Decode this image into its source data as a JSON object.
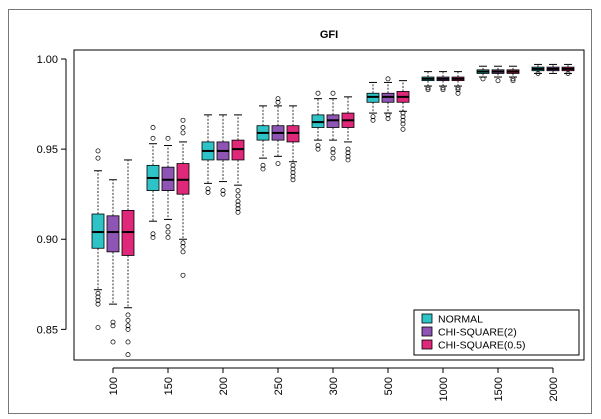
{
  "chart_data": {
    "type": "box",
    "title": "GFI",
    "xlabel": "",
    "ylabel": "",
    "ylim": [
      0.833,
      1.005
    ],
    "y_ticks": [
      "0.85",
      "0.90",
      "0.95",
      "1.00"
    ],
    "categories": [
      "100",
      "150",
      "200",
      "250",
      "300",
      "500",
      "1000",
      "1500",
      "2000"
    ],
    "legend_position": "bottom-right",
    "series": [
      {
        "name": "NORMAL",
        "color": "#2ec4c7",
        "boxes": [
          {
            "whisker_low": 0.872,
            "q1": 0.895,
            "median": 0.904,
            "q3": 0.914,
            "whisker_high": 0.938,
            "outliers": [
              0.851,
              0.864,
              0.866,
              0.868,
              0.87,
              0.945,
              0.949
            ]
          },
          {
            "whisker_low": 0.91,
            "q1": 0.927,
            "median": 0.934,
            "q3": 0.941,
            "whisker_high": 0.953,
            "outliers": [
              0.901,
              0.903,
              0.956,
              0.962
            ]
          },
          {
            "whisker_low": 0.931,
            "q1": 0.944,
            "median": 0.949,
            "q3": 0.954,
            "whisker_high": 0.969,
            "outliers": [
              0.926,
              0.928
            ]
          },
          {
            "whisker_low": 0.945,
            "q1": 0.955,
            "median": 0.959,
            "q3": 0.963,
            "whisker_high": 0.974,
            "outliers": [
              0.939,
              0.941
            ]
          },
          {
            "whisker_low": 0.955,
            "q1": 0.962,
            "median": 0.965,
            "q3": 0.969,
            "whisker_high": 0.978,
            "outliers": [
              0.95,
              0.952,
              0.981
            ]
          },
          {
            "whisker_low": 0.97,
            "q1": 0.976,
            "median": 0.979,
            "q3": 0.981,
            "whisker_high": 0.987,
            "outliers": [
              0.966,
              0.968
            ]
          },
          {
            "whisker_low": 0.985,
            "q1": 0.988,
            "median": 0.989,
            "q3": 0.99,
            "whisker_high": 0.993,
            "outliers": [
              0.983,
              0.984
            ]
          },
          {
            "whisker_low": 0.99,
            "q1": 0.992,
            "median": 0.993,
            "q3": 0.994,
            "whisker_high": 0.996,
            "outliers": [
              0.989
            ]
          },
          {
            "whisker_low": 0.992,
            "q1": 0.9935,
            "median": 0.9945,
            "q3": 0.9955,
            "whisker_high": 0.997,
            "outliers": [
              0.992
            ]
          }
        ]
      },
      {
        "name": "CHI-SQUARE(2)",
        "color": "#8e55b4",
        "boxes": [
          {
            "whisker_low": 0.864,
            "q1": 0.893,
            "median": 0.904,
            "q3": 0.913,
            "whisker_high": 0.933,
            "outliers": [
              0.843,
              0.852,
              0.854
            ]
          },
          {
            "whisker_low": 0.911,
            "q1": 0.927,
            "median": 0.933,
            "q3": 0.94,
            "whisker_high": 0.952,
            "outliers": [
              0.901,
              0.904,
              0.907,
              0.956
            ]
          },
          {
            "whisker_low": 0.932,
            "q1": 0.944,
            "median": 0.949,
            "q3": 0.954,
            "whisker_high": 0.969,
            "outliers": [
              0.925,
              0.927
            ]
          },
          {
            "whisker_low": 0.946,
            "q1": 0.955,
            "median": 0.959,
            "q3": 0.963,
            "whisker_high": 0.974,
            "outliers": [
              0.942,
              0.976,
              0.978
            ]
          },
          {
            "whisker_low": 0.955,
            "q1": 0.962,
            "median": 0.966,
            "q3": 0.969,
            "whisker_high": 0.978,
            "outliers": [
              0.945,
              0.948,
              0.95,
              0.981
            ]
          },
          {
            "whisker_low": 0.97,
            "q1": 0.976,
            "median": 0.979,
            "q3": 0.981,
            "whisker_high": 0.987,
            "outliers": [
              0.967,
              0.969,
              0.989
            ]
          },
          {
            "whisker_low": 0.985,
            "q1": 0.988,
            "median": 0.989,
            "q3": 0.99,
            "whisker_high": 0.993,
            "outliers": [
              0.983,
              0.984
            ]
          },
          {
            "whisker_low": 0.99,
            "q1": 0.992,
            "median": 0.993,
            "q3": 0.994,
            "whisker_high": 0.996,
            "outliers": [
              0.988
            ]
          },
          {
            "whisker_low": 0.992,
            "q1": 0.9935,
            "median": 0.9945,
            "q3": 0.9955,
            "whisker_high": 0.997,
            "outliers": []
          }
        ]
      },
      {
        "name": "CHI-SQUARE(0.5)",
        "color": "#e0287a",
        "boxes": [
          {
            "whisker_low": 0.862,
            "q1": 0.891,
            "median": 0.904,
            "q3": 0.916,
            "whisker_high": 0.944,
            "outliers": [
              0.836,
              0.843,
              0.85,
              0.852,
              0.855,
              0.858
            ]
          },
          {
            "whisker_low": 0.9,
            "q1": 0.925,
            "median": 0.933,
            "q3": 0.942,
            "whisker_high": 0.954,
            "outliers": [
              0.88,
              0.893,
              0.896,
              0.898,
              0.959,
              0.962,
              0.966
            ]
          },
          {
            "whisker_low": 0.93,
            "q1": 0.944,
            "median": 0.95,
            "q3": 0.955,
            "whisker_high": 0.969,
            "outliers": [
              0.915,
              0.917,
              0.919,
              0.921,
              0.924,
              0.927
            ]
          },
          {
            "whisker_low": 0.943,
            "q1": 0.954,
            "median": 0.959,
            "q3": 0.963,
            "whisker_high": 0.974,
            "outliers": [
              0.933,
              0.935,
              0.937,
              0.939,
              0.941
            ]
          },
          {
            "whisker_low": 0.954,
            "q1": 0.962,
            "median": 0.966,
            "q3": 0.97,
            "whisker_high": 0.979,
            "outliers": [
              0.944,
              0.946,
              0.948,
              0.95
            ]
          },
          {
            "whisker_low": 0.971,
            "q1": 0.976,
            "median": 0.979,
            "q3": 0.982,
            "whisker_high": 0.988,
            "outliers": [
              0.961,
              0.964,
              0.966,
              0.968,
              0.97
            ]
          },
          {
            "whisker_low": 0.985,
            "q1": 0.988,
            "median": 0.989,
            "q3": 0.99,
            "whisker_high": 0.993,
            "outliers": [
              0.981,
              0.983,
              0.984
            ]
          },
          {
            "whisker_low": 0.99,
            "q1": 0.992,
            "median": 0.993,
            "q3": 0.994,
            "whisker_high": 0.996,
            "outliers": [
              0.988,
              0.989
            ]
          },
          {
            "whisker_low": 0.992,
            "q1": 0.9935,
            "median": 0.9945,
            "q3": 0.9955,
            "whisker_high": 0.997,
            "outliers": [
              0.992
            ]
          }
        ]
      }
    ]
  }
}
